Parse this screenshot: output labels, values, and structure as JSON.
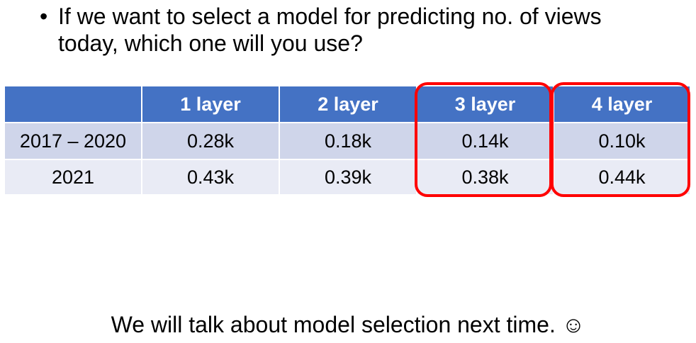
{
  "bullet": {
    "symbol": "•",
    "text": "If we want to select a model for predicting no. of views today, which one will you use?"
  },
  "table": {
    "headers": [
      "",
      "1 layer",
      "2 layer",
      "3 layer",
      "4 layer"
    ],
    "rows": [
      [
        "2017 – 2020",
        "0.28k",
        "0.18k",
        "0.14k",
        "0.10k"
      ],
      [
        "2021",
        "0.43k",
        "0.39k",
        "0.38k",
        "0.44k"
      ]
    ],
    "highlighted_columns": [
      "3 layer",
      "4 layer"
    ],
    "colors": {
      "header_bg": "#4472c4",
      "row_odd_bg": "#cfd5ea",
      "row_even_bg": "#e9ebf5",
      "highlight": "#ff0000"
    }
  },
  "footer": {
    "text": "We will talk about model selection next time. ☺"
  }
}
